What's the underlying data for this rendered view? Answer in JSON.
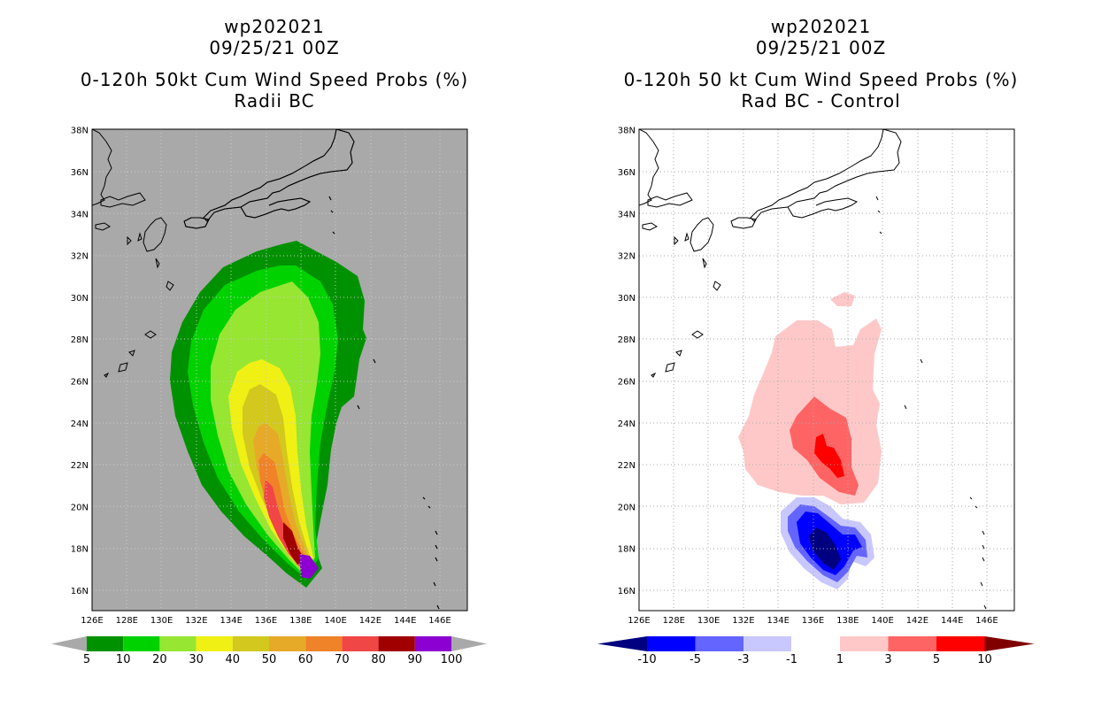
{
  "left_panel": {
    "storm_id": "wp202021",
    "datetime": "09/25/21 00Z",
    "product": "0-120h 50kt Cum Wind Speed Probs (%)",
    "subtitle": "Radii BC",
    "colorbar_labels": [
      "5",
      "10",
      "20",
      "30",
      "40",
      "50",
      "60",
      "70",
      "80",
      "90",
      "100"
    ],
    "colors": [
      "#009100",
      "#00d200",
      "#96e632",
      "#f0f014",
      "#d2c81e",
      "#e6aa28",
      "#f08228",
      "#f04646",
      "#a00000",
      "#8c00d2"
    ]
  },
  "right_panel": {
    "storm_id": "wp202021",
    "datetime": "09/25/21 00Z",
    "product": "0-120h 50 kt Cum Wind Speed Probs (%)",
    "subtitle": "Rad BC - Control",
    "colorbar_labels": [
      "-10",
      "-5",
      "-3",
      "-1",
      "1",
      "3",
      "5",
      "10"
    ],
    "colors": [
      "#000080",
      "#0000ff",
      "#6464ff",
      "#c8c8ff",
      "#ffffff",
      "#ffc8c8",
      "#ff6464",
      "#ff0000",
      "#800000"
    ]
  },
  "axes": {
    "lon_ticks": [
      "126E",
      "128E",
      "130E",
      "132E",
      "134E",
      "136E",
      "138E",
      "140E",
      "142E",
      "144E",
      "146E"
    ],
    "lat_ticks": [
      "16N",
      "18N",
      "20N",
      "22N",
      "24N",
      "26N",
      "28N",
      "30N",
      "32N",
      "34N",
      "36N",
      "38N"
    ]
  },
  "map_extent": {
    "lon_min": 126,
    "lon_max": 147.3,
    "lat_min": 15,
    "lat_max": 38
  }
}
